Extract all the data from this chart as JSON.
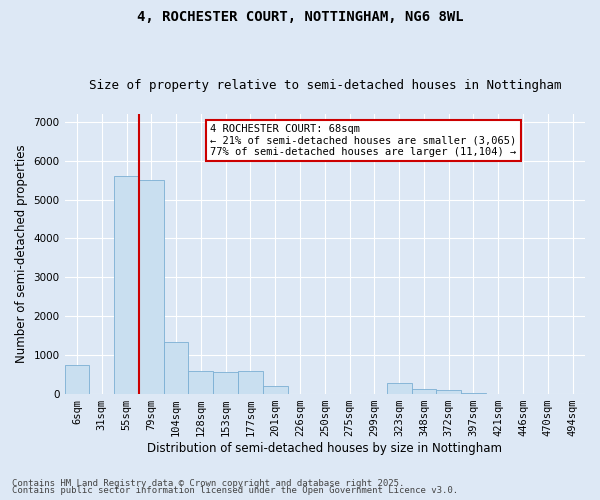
{
  "title": "4, ROCHESTER COURT, NOTTINGHAM, NG6 8WL",
  "subtitle": "Size of property relative to semi-detached houses in Nottingham",
  "xlabel": "Distribution of semi-detached houses by size in Nottingham",
  "ylabel": "Number of semi-detached properties",
  "categories": [
    "6sqm",
    "31sqm",
    "55sqm",
    "79sqm",
    "104sqm",
    "128sqm",
    "153sqm",
    "177sqm",
    "201sqm",
    "226sqm",
    "250sqm",
    "275sqm",
    "299sqm",
    "323sqm",
    "348sqm",
    "372sqm",
    "397sqm",
    "421sqm",
    "446sqm",
    "470sqm",
    "494sqm"
  ],
  "values": [
    750,
    0,
    5600,
    5500,
    1350,
    600,
    580,
    590,
    200,
    0,
    0,
    0,
    0,
    280,
    130,
    100,
    40,
    10,
    0,
    0,
    0
  ],
  "bar_color": "#c9dff0",
  "bar_edgecolor": "#7bafd4",
  "vline_color": "#cc0000",
  "vline_x": 2.5,
  "annotation_text": "4 ROCHESTER COURT: 68sqm\n← 21% of semi-detached houses are smaller (3,065)\n77% of semi-detached houses are larger (11,104) →",
  "annotation_box_color": "#ffffff",
  "annotation_box_edgecolor": "#cc0000",
  "ylim": [
    0,
    7200
  ],
  "background_color": "#dde8f5",
  "plot_background_color": "#dde8f5",
  "title_fontsize": 10,
  "subtitle_fontsize": 9,
  "axis_label_fontsize": 8.5,
  "tick_fontsize": 7.5,
  "annotation_fontsize": 7.5,
  "footer_fontsize": 6.5,
  "footer_line1": "Contains HM Land Registry data © Crown copyright and database right 2025.",
  "footer_line2": "Contains public sector information licensed under the Open Government Licence v3.0."
}
